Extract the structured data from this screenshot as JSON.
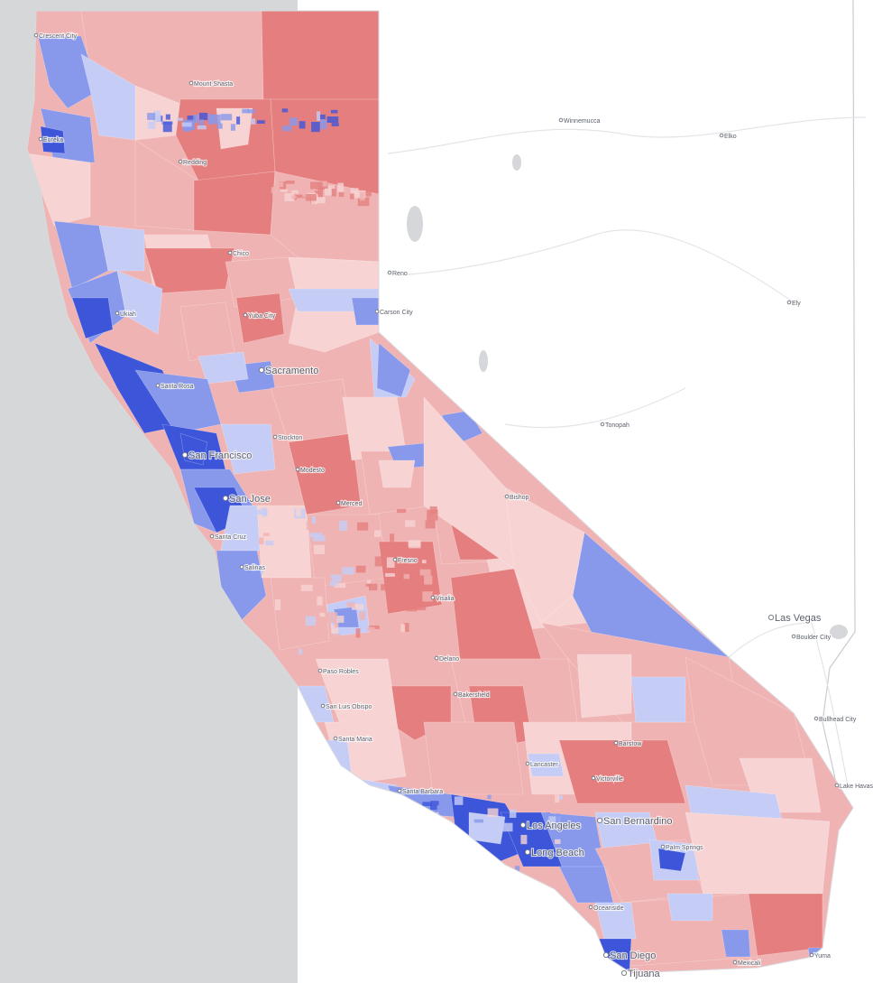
{
  "colors": {
    "ocean": "#d6d7d9",
    "land": "#ffffff",
    "strong_rep": "#e57f7f",
    "lean_rep": "#f0b3b3",
    "light_rep": "#f7d3d3",
    "strong_dem": "#3d55d9",
    "lean_dem": "#8899ec",
    "light_dem": "#c5cdf6"
  },
  "cities_major": [
    {
      "id": "sacramento",
      "name": "Sacramento"
    },
    {
      "id": "san-francisco",
      "name": "San Francisco"
    },
    {
      "id": "san-jose",
      "name": "San Jose"
    },
    {
      "id": "los-angeles",
      "name": "Los Angeles"
    },
    {
      "id": "long-beach",
      "name": "Long Beach"
    },
    {
      "id": "san-bernardino",
      "name": "San Bernardino"
    },
    {
      "id": "san-diego",
      "name": "San Diego"
    },
    {
      "id": "tijuana",
      "name": "Tijuana"
    },
    {
      "id": "las-vegas",
      "name": "Las Vegas"
    }
  ],
  "cities_minor": [
    {
      "id": "crescent-city",
      "name": "Crescent City"
    },
    {
      "id": "mount-shasta",
      "name": "Mount Shasta"
    },
    {
      "id": "eureka",
      "name": "Eureka"
    },
    {
      "id": "redding",
      "name": "Redding"
    },
    {
      "id": "chico",
      "name": "Chico"
    },
    {
      "id": "ukiah",
      "name": "Ukiah"
    },
    {
      "id": "yuba-city",
      "name": "Yuba City"
    },
    {
      "id": "santa-rosa",
      "name": "Santa Rosa"
    },
    {
      "id": "stockton",
      "name": "Stockton"
    },
    {
      "id": "modesto",
      "name": "Modesto"
    },
    {
      "id": "merced",
      "name": "Merced"
    },
    {
      "id": "santa-cruz",
      "name": "Santa Cruz"
    },
    {
      "id": "salinas",
      "name": "Salinas"
    },
    {
      "id": "fresno",
      "name": "Fresno"
    },
    {
      "id": "visalia",
      "name": "Visalia"
    },
    {
      "id": "delano",
      "name": "Delano"
    },
    {
      "id": "bakersfield",
      "name": "Bakersfield"
    },
    {
      "id": "paso-robles",
      "name": "Paso Robles"
    },
    {
      "id": "san-luis-obispo",
      "name": "San Luis Obispo"
    },
    {
      "id": "santa-maria",
      "name": "Santa Maria"
    },
    {
      "id": "santa-barbara",
      "name": "Santa Barbara"
    },
    {
      "id": "lancaster",
      "name": "Lancaster"
    },
    {
      "id": "victorville",
      "name": "Victorville"
    },
    {
      "id": "barstow",
      "name": "Barstow"
    },
    {
      "id": "palm-springs",
      "name": "Palm Springs"
    },
    {
      "id": "oceanside",
      "name": "Oceanside"
    },
    {
      "id": "mexicali",
      "name": "Mexicali"
    },
    {
      "id": "yuma",
      "name": "Yuma"
    },
    {
      "id": "bishop",
      "name": "Bishop"
    },
    {
      "id": "winnemucca",
      "name": "Winnemucca"
    },
    {
      "id": "elko",
      "name": "Elko"
    },
    {
      "id": "reno",
      "name": "Reno"
    },
    {
      "id": "carson-city",
      "name": "Carson City"
    },
    {
      "id": "ely",
      "name": "Ely"
    },
    {
      "id": "tonopah",
      "name": "Tonopah"
    },
    {
      "id": "boulder-city",
      "name": "Boulder City"
    },
    {
      "id": "bullhead-city",
      "name": "Bullhead City"
    },
    {
      "id": "lake-havasu",
      "name": "Lake Havasu"
    }
  ]
}
